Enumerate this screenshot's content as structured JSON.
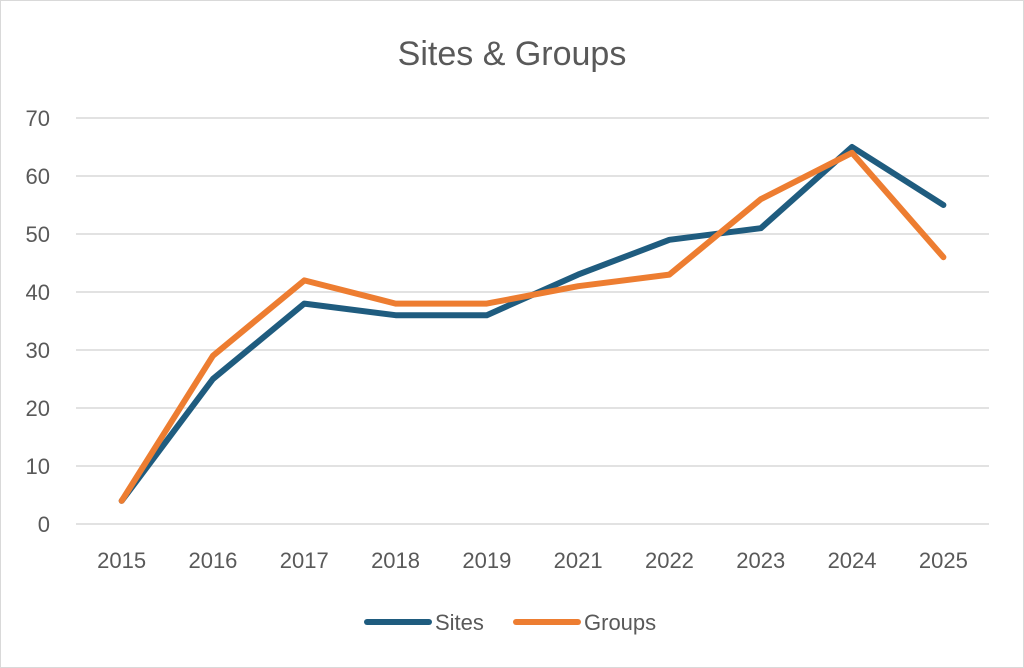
{
  "chart_data": {
    "type": "line",
    "title": "Sites & Groups",
    "xlabel": "",
    "ylabel": "",
    "categories": [
      "2015",
      "2016",
      "2017",
      "2018",
      "2019",
      "2021",
      "2022",
      "2023",
      "2024",
      "2025"
    ],
    "ylim": [
      0,
      70
    ],
    "yticks": [
      0,
      10,
      20,
      30,
      40,
      50,
      60,
      70
    ],
    "grid": true,
    "legend_position": "bottom",
    "series": [
      {
        "name": "Sites",
        "color": "#1f5c7f",
        "values": [
          4,
          25,
          38,
          36,
          36,
          43,
          49,
          51,
          65,
          55
        ]
      },
      {
        "name": "Groups",
        "color": "#ed7d31",
        "values": [
          4,
          29,
          42,
          38,
          38,
          41,
          43,
          56,
          64,
          46
        ]
      }
    ]
  }
}
